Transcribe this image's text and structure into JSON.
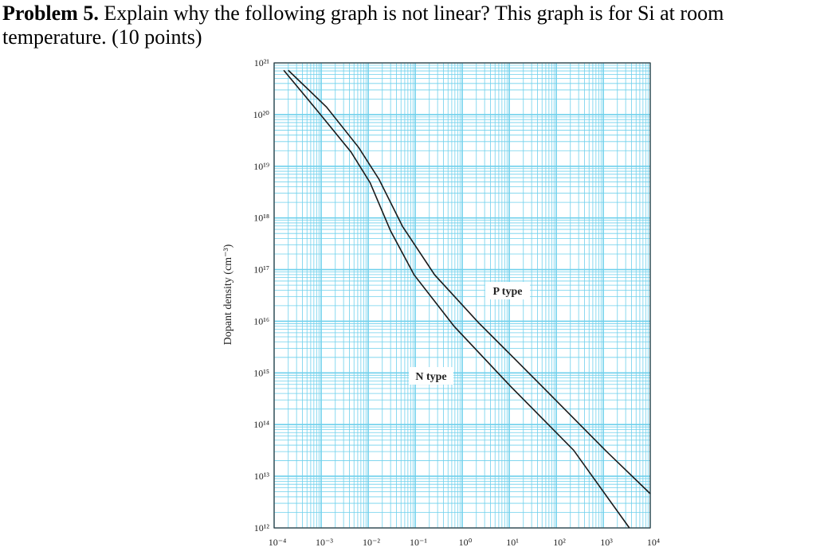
{
  "problem": {
    "label": "Problem 5.",
    "text": "Explain why the following graph is not linear? This graph is for Si at room temperature. (10 points)"
  },
  "chart_data": {
    "type": "line",
    "y_label": "Dopant density (cm⁻³)",
    "xlog": true,
    "ylog": true,
    "grid": true,
    "grid_color": "#6fd0ec",
    "xlim": [
      0.0001,
      10000
    ],
    "ylim": [
      1000000000000.0,
      1e+21
    ],
    "xticks": [
      {
        "value": 0.0001,
        "label": "10⁻⁴"
      },
      {
        "value": 0.001,
        "label": "10⁻³"
      },
      {
        "value": 0.01,
        "label": "10⁻²"
      },
      {
        "value": 0.1,
        "label": "10⁻¹"
      },
      {
        "value": 1,
        "label": "10⁰"
      },
      {
        "value": 10,
        "label": "10¹"
      },
      {
        "value": 100,
        "label": "10²"
      },
      {
        "value": 1000,
        "label": "10³"
      },
      {
        "value": 10000,
        "label": "10⁴"
      }
    ],
    "yticks": [
      {
        "value": 1000000000000.0,
        "label": "10¹²"
      },
      {
        "value": 10000000000000.0,
        "label": "10¹³"
      },
      {
        "value": 100000000000000.0,
        "label": "10¹⁴"
      },
      {
        "value": 1000000000000000.0,
        "label": "10¹⁵"
      },
      {
        "value": 1e+16,
        "label": "10¹⁶"
      },
      {
        "value": 1e+17,
        "label": "10¹⁷"
      },
      {
        "value": 1e+18,
        "label": "10¹⁸"
      },
      {
        "value": 1e+19,
        "label": "10¹⁹"
      },
      {
        "value": 1e+20,
        "label": "10²⁰"
      },
      {
        "value": 1e+21,
        "label": "10²¹"
      }
    ],
    "series": [
      {
        "name": "N type",
        "color": "#1a1a1a",
        "x": [
          0.00016,
          0.00089,
          0.0043,
          0.011,
          0.03,
          0.095,
          0.68,
          10.5,
          234,
          3600
        ],
        "values": [
          7.2e+20,
          1.1e+20,
          1.9e+19,
          4.8e+18,
          5.6e+17,
          7.9e+16,
          7900000000000000.0,
          560000000000000.0,
          32000000000000.0,
          1000000000000.0
        ]
      },
      {
        "name": "P type",
        "color": "#1a1a1a",
        "x": [
          0.0002,
          0.0013,
          0.0063,
          0.017,
          0.054,
          0.26,
          2.2,
          49,
          1100,
          10000
        ],
        "values": [
          7.2e+20,
          1.4e+20,
          2.3e+19,
          5.6e+18,
          6.8e+17,
          7.9e+16,
          9500000000000000.0,
          560000000000000.0,
          32000000000000.0,
          4600000000000.0
        ]
      }
    ]
  }
}
